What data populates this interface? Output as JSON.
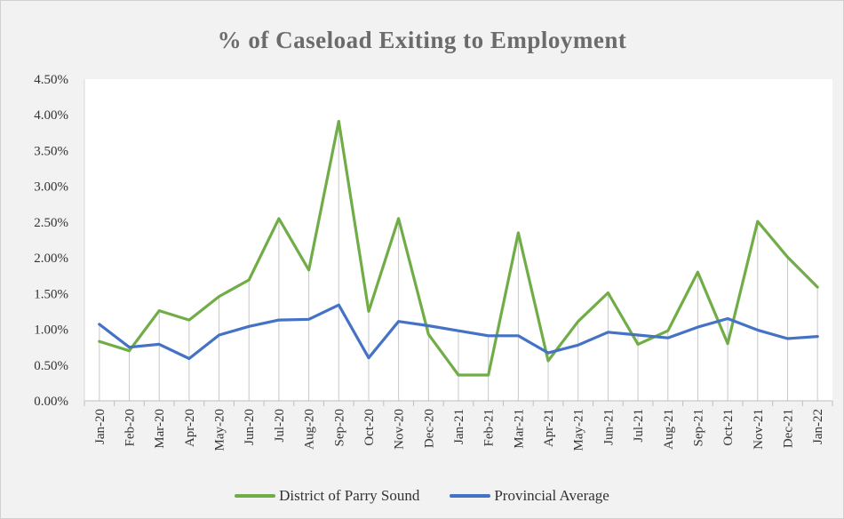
{
  "chart_data": {
    "type": "line",
    "title": "% of Caseload  Exiting to Employment",
    "xlabel": "",
    "ylabel": "",
    "categories": [
      "Jan-20",
      "Feb-20",
      "Mar-20",
      "Apr-20",
      "May-20",
      "Jun-20",
      "Jul-20",
      "Aug-20",
      "Sep-20",
      "Oct-20",
      "Nov-20",
      "Dec-20",
      "Jan-21",
      "Feb-21",
      "Mar-21",
      "Apr-21",
      "May-21",
      "Jun-21",
      "Jul-21",
      "Aug-21",
      "Sep-21",
      "Oct-21",
      "Nov-21",
      "Dec-21",
      "Jan-22"
    ],
    "ylim": [
      0,
      4.5
    ],
    "yticks": [
      "0.00%",
      "0.50%",
      "1.00%",
      "1.50%",
      "2.00%",
      "2.50%",
      "3.00%",
      "3.50%",
      "4.00%",
      "4.50%"
    ],
    "grid": "vertical drop lines at each category",
    "legend_position": "bottom",
    "series": [
      {
        "name": "District of Parry Sound",
        "color": "#70ad47",
        "values": [
          0.83,
          0.7,
          1.26,
          1.13,
          1.46,
          1.69,
          2.55,
          1.83,
          3.91,
          1.25,
          2.55,
          0.93,
          0.36,
          0.36,
          2.35,
          0.56,
          1.11,
          1.51,
          0.79,
          0.98,
          1.8,
          0.8,
          2.51,
          2.01,
          1.59
        ]
      },
      {
        "name": "Provincial Average",
        "color": "#4472c4",
        "values": [
          1.07,
          0.75,
          0.79,
          0.59,
          0.92,
          1.04,
          1.13,
          1.14,
          1.34,
          0.6,
          1.11,
          1.05,
          0.98,
          0.91,
          0.91,
          0.67,
          0.78,
          0.96,
          0.92,
          0.88,
          1.03,
          1.15,
          0.99,
          0.87,
          0.9
        ]
      }
    ]
  }
}
